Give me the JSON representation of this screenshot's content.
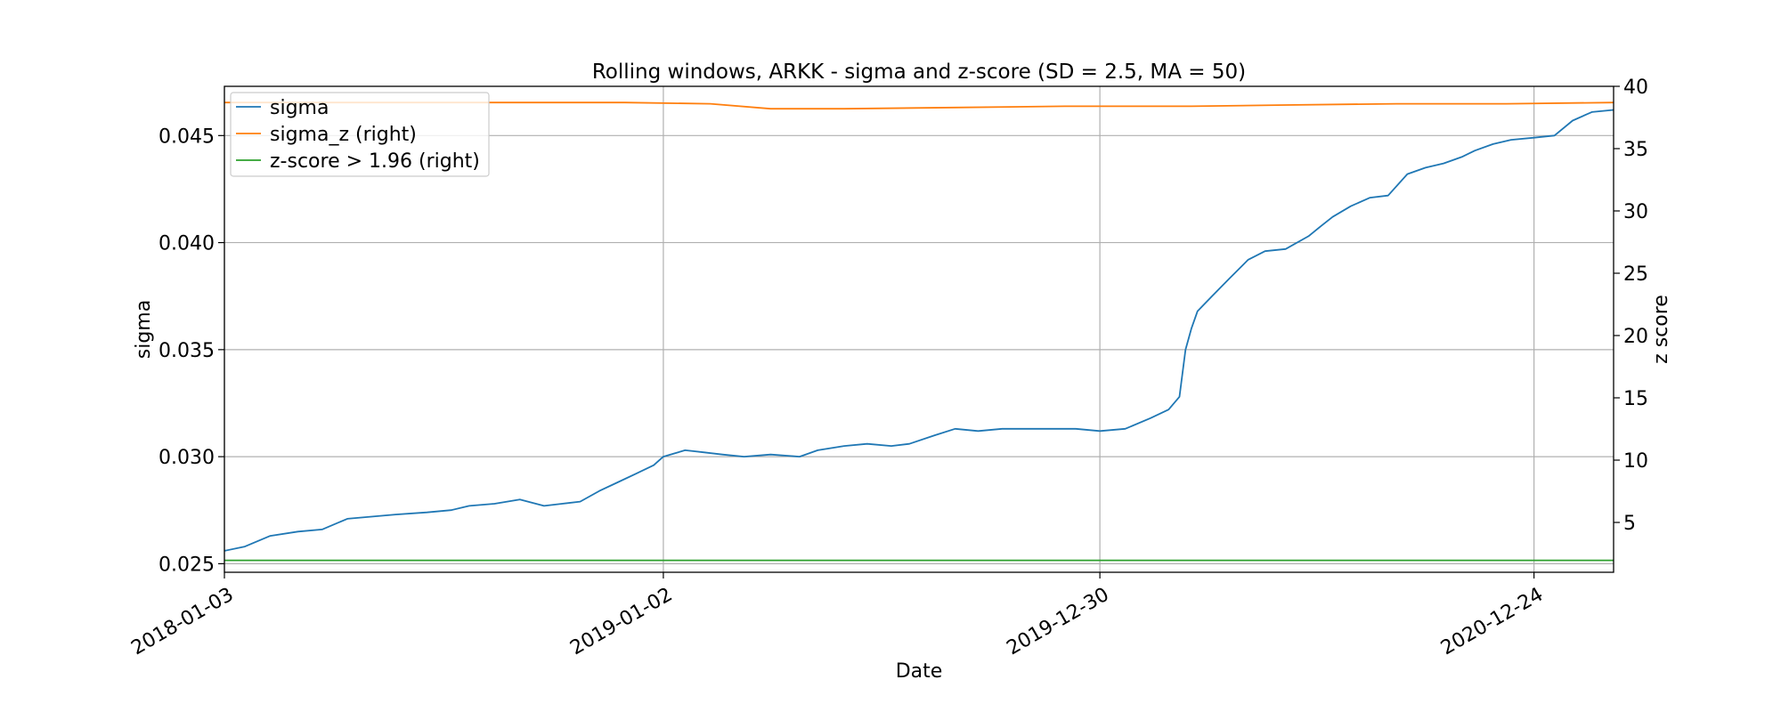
{
  "chart_data": {
    "type": "line",
    "title": "Rolling windows, ARKK - sigma and z-score (SD = 2.5, MA = 50)",
    "xlabel": "Date",
    "ylabel": "sigma",
    "ylabel_right": "z score",
    "x_ticks": [
      "2018-01-03",
      "2019-01-02",
      "2019-12-30",
      "2020-12-24"
    ],
    "xlim": [
      "2018-01-03",
      "2021-02-28"
    ],
    "y_ticks": [
      "0.025",
      "0.030",
      "0.035",
      "0.040",
      "0.045"
    ],
    "ylim": [
      0.0246,
      0.0473
    ],
    "y2_ticks": [
      "5",
      "10",
      "15",
      "20",
      "25",
      "30",
      "35",
      "40"
    ],
    "y2lim": [
      1.0,
      40.0
    ],
    "grid": true,
    "legend_position": "top-left",
    "colors": {
      "sigma": "#1f77b4",
      "sigma_z": "#ff7f0e",
      "zscore": "#2ca02c"
    },
    "series": [
      {
        "name": "sigma",
        "axis": "left",
        "x": [
          "2018-01-03",
          "2018-01-20",
          "2018-02-10",
          "2018-03-05",
          "2018-03-25",
          "2018-04-15",
          "2018-05-05",
          "2018-05-25",
          "2018-06-20",
          "2018-07-10",
          "2018-07-25",
          "2018-08-15",
          "2018-09-05",
          "2018-09-25",
          "2018-10-10",
          "2018-10-25",
          "2018-11-10",
          "2018-11-25",
          "2018-12-10",
          "2018-12-25",
          "2019-01-02",
          "2019-01-20",
          "2019-02-05",
          "2019-02-20",
          "2019-03-10",
          "2019-04-01",
          "2019-04-25",
          "2019-05-10",
          "2019-06-01",
          "2019-06-20",
          "2019-07-10",
          "2019-07-25",
          "2019-08-15",
          "2019-09-01",
          "2019-09-20",
          "2019-10-10",
          "2019-11-01",
          "2019-11-20",
          "2019-12-10",
          "2019-12-30",
          "2020-01-20",
          "2020-02-10",
          "2020-02-25",
          "2020-03-05",
          "2020-03-10",
          "2020-03-15",
          "2020-03-20",
          "2020-04-01",
          "2020-04-15",
          "2020-05-01",
          "2020-05-15",
          "2020-06-01",
          "2020-06-20",
          "2020-07-01",
          "2020-07-10",
          "2020-07-25",
          "2020-08-10",
          "2020-08-25",
          "2020-09-10",
          "2020-09-25",
          "2020-10-10",
          "2020-10-25",
          "2020-11-05",
          "2020-11-20",
          "2020-12-05",
          "2020-12-24",
          "2021-01-10",
          "2021-01-25",
          "2021-02-10",
          "2021-02-28"
        ],
        "y": [
          0.0256,
          0.0258,
          0.0263,
          0.0265,
          0.0266,
          0.0271,
          0.0272,
          0.0273,
          0.0274,
          0.0275,
          0.0277,
          0.0278,
          0.028,
          0.0277,
          0.0278,
          0.0279,
          0.0284,
          0.0288,
          0.0292,
          0.0296,
          0.03,
          0.0303,
          0.0302,
          0.0301,
          0.03,
          0.0301,
          0.03,
          0.0303,
          0.0305,
          0.0306,
          0.0305,
          0.0306,
          0.031,
          0.0313,
          0.0312,
          0.0313,
          0.0313,
          0.0313,
          0.0313,
          0.0312,
          0.0313,
          0.0318,
          0.0322,
          0.0328,
          0.035,
          0.036,
          0.0368,
          0.0375,
          0.0383,
          0.0392,
          0.0396,
          0.0397,
          0.0403,
          0.0408,
          0.0412,
          0.0417,
          0.0421,
          0.0422,
          0.0432,
          0.0435,
          0.0437,
          0.044,
          0.0443,
          0.0446,
          0.0448,
          0.0449,
          0.045,
          0.0457,
          0.0461,
          0.0462
        ]
      },
      {
        "name": "sigma_z (right)",
        "axis": "right",
        "x": [
          "2018-01-03",
          "2018-06-01",
          "2018-12-01",
          "2019-02-10",
          "2019-04-01",
          "2019-06-01",
          "2019-09-01",
          "2019-12-01",
          "2020-02-20",
          "2020-03-15",
          "2020-06-01",
          "2020-09-01",
          "2020-12-01",
          "2021-02-28"
        ],
        "y": [
          38.7,
          38.7,
          38.7,
          38.6,
          38.2,
          38.2,
          38.3,
          38.4,
          38.4,
          38.4,
          38.5,
          38.6,
          38.6,
          38.7
        ]
      },
      {
        "name": "z-score > 1.96 (right)",
        "axis": "right",
        "x": [
          "2018-01-03",
          "2021-02-28"
        ],
        "y": [
          1.96,
          1.96
        ]
      }
    ]
  }
}
